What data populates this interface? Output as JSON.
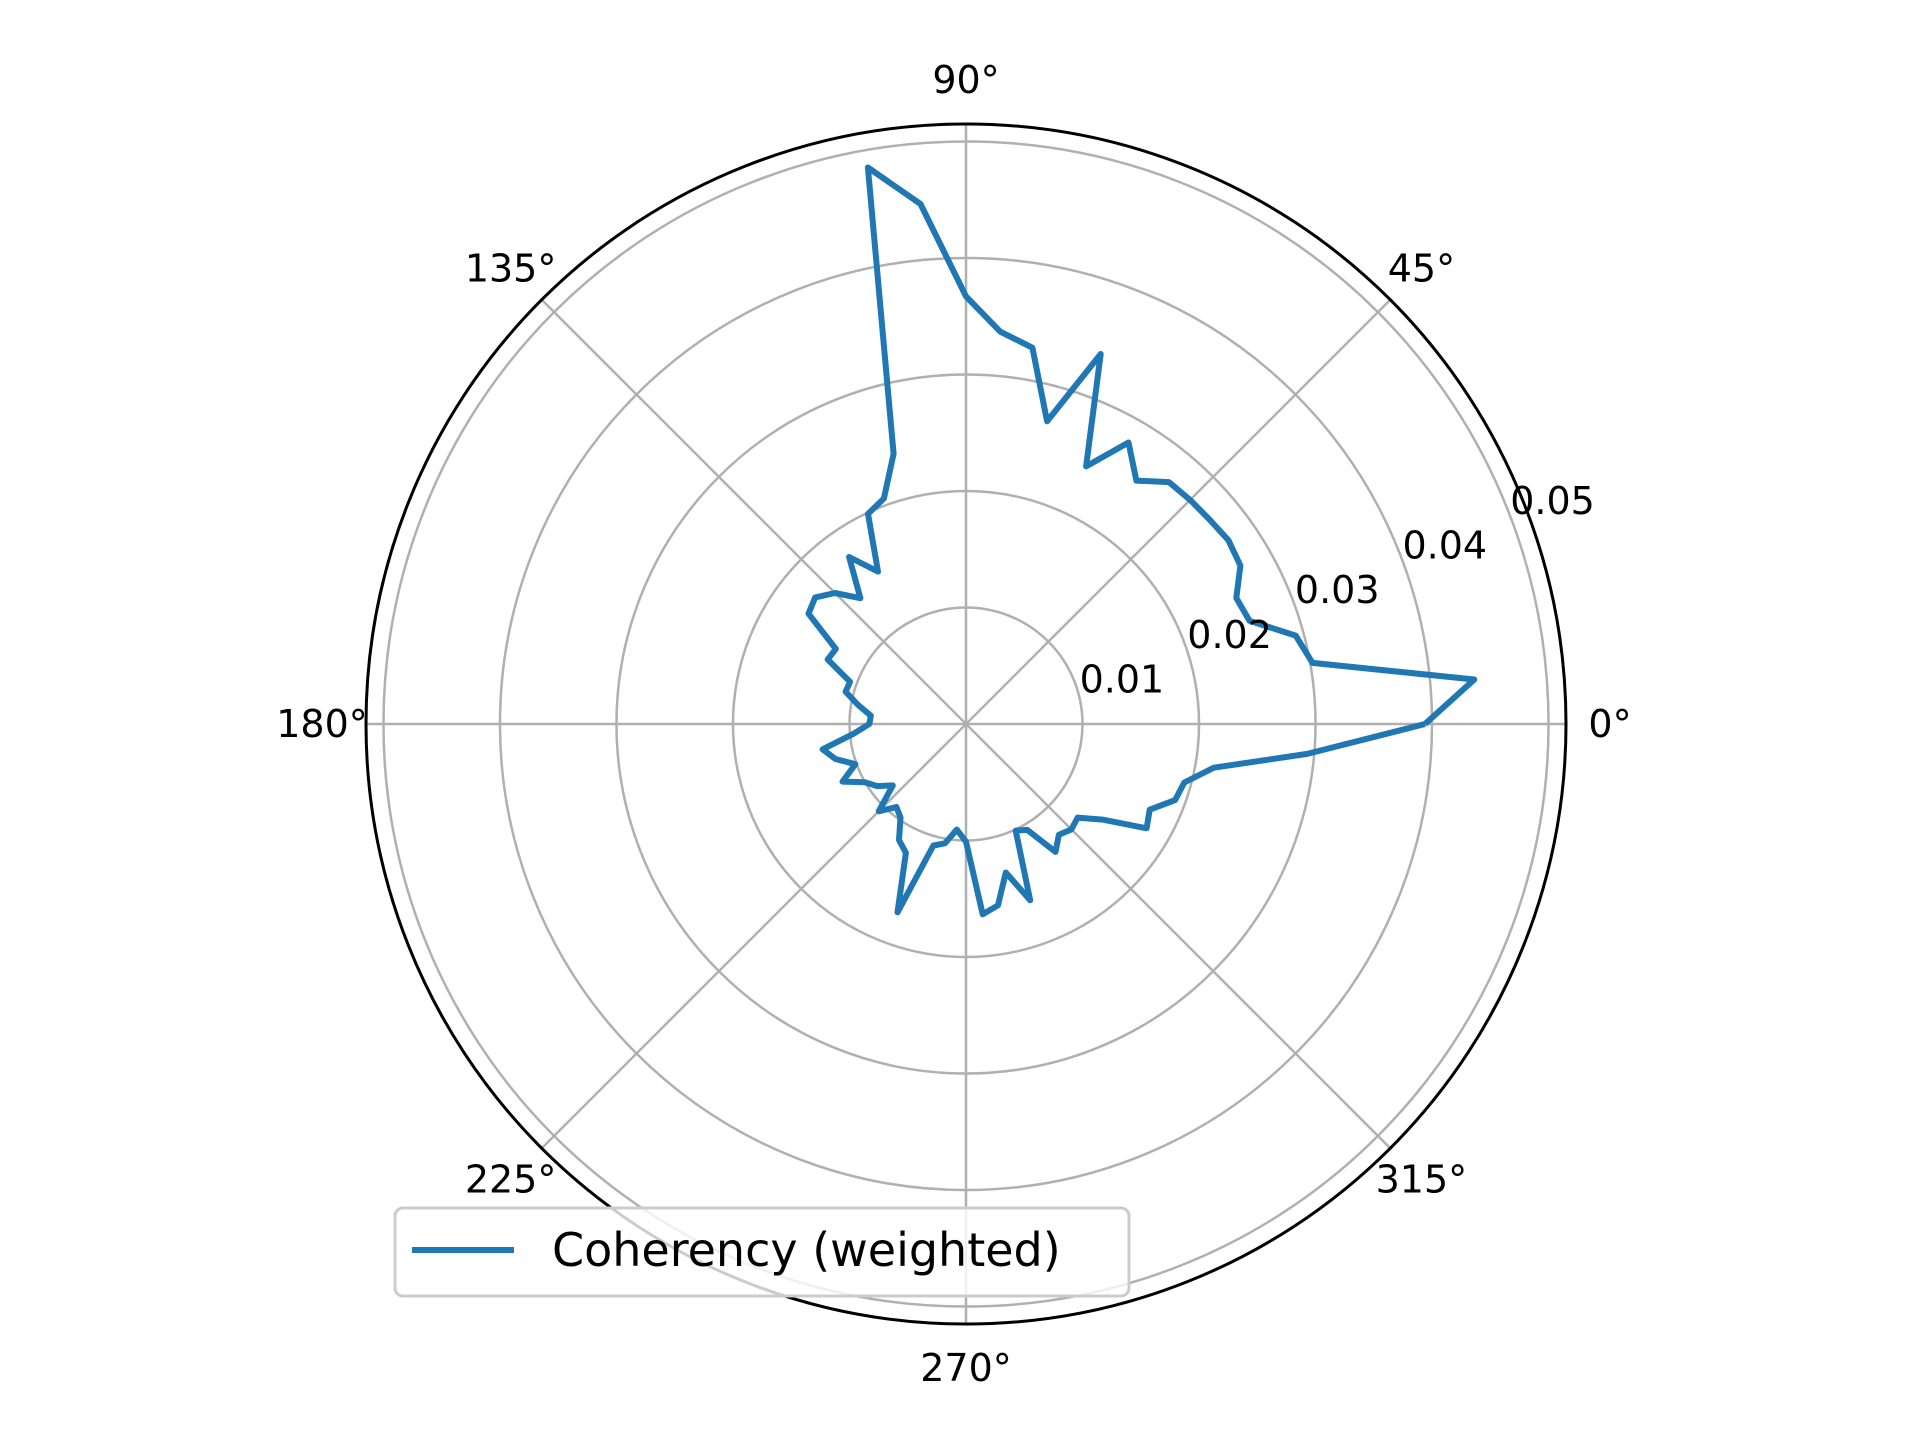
{
  "chart_data": {
    "type": "line",
    "projection": "polar",
    "title": "",
    "grid": true,
    "legend_position": "lower-left",
    "theta_unit": "degrees",
    "theta_ticks": [
      0,
      45,
      90,
      135,
      180,
      225,
      270,
      315
    ],
    "theta_tick_labels": [
      "0°",
      "45°",
      "90°",
      "135°",
      "180°",
      "225°",
      "270°",
      "315°"
    ],
    "r_ticks": [
      0.01,
      0.02,
      0.03,
      0.04,
      0.05
    ],
    "r_tick_labels": [
      "0.01",
      "0.02",
      "0.03",
      "0.04",
      "0.05"
    ],
    "r_tick_label_angle_deg": 22.5,
    "rlim": [
      0,
      0.0515
    ],
    "colors": {
      "series": "#1f77b4",
      "grid": "#b0b0b0",
      "frame": "#000000"
    },
    "series": [
      {
        "name": "Coherency (weighted)",
        "color": "#1f77b4",
        "theta": [
          0,
          5,
          10,
          15,
          20,
          25,
          30,
          35,
          40,
          45,
          50,
          55,
          60,
          65,
          70,
          75,
          80,
          85,
          90,
          95,
          100,
          105,
          110,
          115,
          120,
          125,
          130,
          135,
          140,
          145,
          150,
          155,
          160,
          165,
          170,
          175,
          180,
          185,
          190,
          195,
          200,
          205,
          210,
          215,
          220,
          225,
          230,
          235,
          240,
          245,
          250,
          255,
          260,
          265,
          270,
          275,
          280,
          285,
          290,
          295,
          300,
          305,
          310,
          315,
          320,
          325,
          330,
          335,
          340,
          345,
          350,
          355,
          360
        ],
        "r": [
          0.0394,
          0.0438,
          0.0302,
          0.0293,
          0.0259,
          0.0256,
          0.0272,
          0.0275,
          0.0273,
          0.0272,
          0.0271,
          0.0255,
          0.0279,
          0.0244,
          0.0338,
          0.0269,
          0.0328,
          0.0338,
          0.0367,
          0.0448,
          0.0485,
          0.024,
          0.0206,
          0.0199,
          0.0151,
          0.0175,
          0.0141,
          0.0159,
          0.0169,
          0.0165,
          0.0129,
          0.0131,
          0.0106,
          0.0107,
          0.0094,
          0.0082,
          0.0083,
          0.0097,
          0.0125,
          0.0116,
          0.0101,
          0.0117,
          0.01,
          0.0093,
          0.0082,
          0.0106,
          0.0093,
          0.0098,
          0.0115,
          0.0122,
          0.0172,
          0.0108,
          0.0104,
          0.0091,
          0.0101,
          0.0164,
          0.0158,
          0.0132,
          0.0161,
          0.0101,
          0.0105,
          0.0134,
          0.0124,
          0.0128,
          0.0125,
          0.0143,
          0.0179,
          0.0174,
          0.0191,
          0.0194,
          0.0216,
          0.0294,
          0.0394
        ]
      }
    ]
  }
}
